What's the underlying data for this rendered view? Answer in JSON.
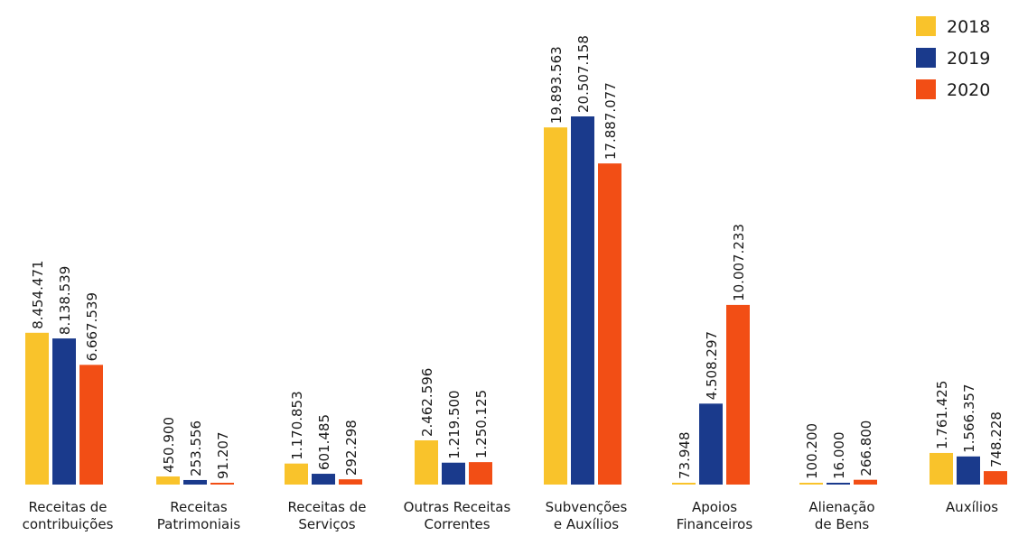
{
  "chart_data": {
    "type": "bar",
    "title": "",
    "xlabel": "",
    "ylabel": "",
    "ylim": [
      0,
      20507158
    ],
    "grid": false,
    "legend_position": "top-right",
    "categories": [
      [
        "Receitas de",
        "contribuições"
      ],
      [
        "Receitas",
        "Patrimoniais"
      ],
      [
        "Receitas de",
        "Serviços"
      ],
      [
        "Outras Receitas",
        "Correntes"
      ],
      [
        "Subvenções",
        "e Auxílios"
      ],
      [
        "Apoios",
        "Financeiros"
      ],
      [
        "Alienação",
        "de Bens"
      ],
      [
        "Auxílios"
      ]
    ],
    "series": [
      {
        "name": "2018",
        "color": "#F9C32B",
        "values": [
          8454471,
          450900,
          1170853,
          2462596,
          19893563,
          73948,
          100200,
          1761425
        ],
        "labels": [
          "8.454.471",
          "450.900",
          "1.170.853",
          "2.462.596",
          "19.893.563",
          "73.948",
          "100.200",
          "1.761.425"
        ]
      },
      {
        "name": "2019",
        "color": "#1A3A8C",
        "values": [
          8138539,
          253556,
          601485,
          1219500,
          20507158,
          4508297,
          16000,
          1566357
        ],
        "labels": [
          "8.138.539",
          "253.556",
          "601.485",
          "1.219.500",
          "20.507.158",
          "4.508.297",
          "16.000",
          "1.566.357"
        ]
      },
      {
        "name": "2020",
        "color": "#F24E15",
        "values": [
          6667539,
          91207,
          292298,
          1250125,
          17887077,
          10007233,
          266800,
          748228
        ],
        "labels": [
          "6.667.539",
          "91.207",
          "292.298",
          "1.250.125",
          "17.887.077",
          "10.007.233",
          "266.800",
          "748.228"
        ]
      }
    ]
  }
}
